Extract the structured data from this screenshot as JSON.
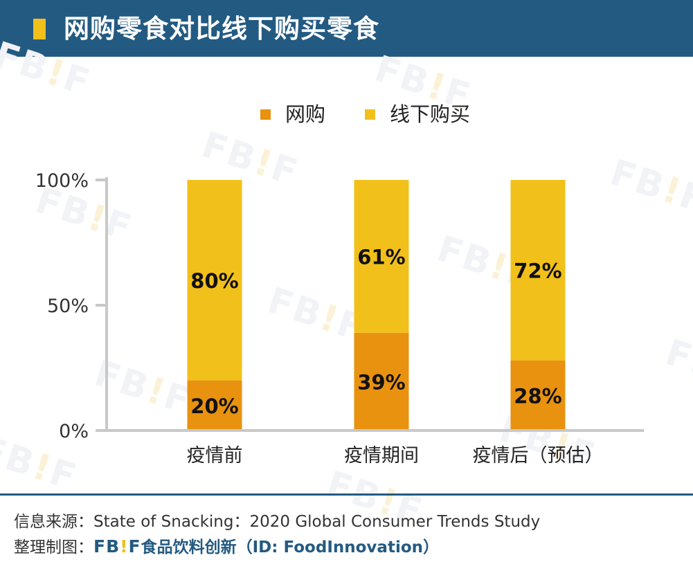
{
  "header": {
    "title": "网购零食对比线下购买零食"
  },
  "legend": {
    "items": [
      {
        "label": "网购",
        "color": "#e8920f"
      },
      {
        "label": "线下购买",
        "color": "#f2c01a"
      }
    ]
  },
  "chart_data": {
    "type": "bar",
    "stacked": true,
    "categories": [
      "疫情前",
      "疫情期间",
      "疫情后（预估）"
    ],
    "series": [
      {
        "name": "网购",
        "values": [
          20,
          39,
          28
        ],
        "color": "#e8920f",
        "labels": [
          "20%",
          "39%",
          "28%"
        ]
      },
      {
        "name": "线下购买",
        "values": [
          80,
          61,
          72
        ],
        "color": "#f2c01a",
        "labels": [
          "80%",
          "61%",
          "72%"
        ]
      }
    ],
    "ylim": [
      0,
      100
    ],
    "yticks": [
      0,
      50,
      100
    ],
    "ytick_labels": [
      "0%",
      "50%",
      "100%"
    ],
    "grid": false,
    "legend_position": "top"
  },
  "footer": {
    "source_label": "信息来源：",
    "source_text": "State of Snacking：2020 Global Consumer Trends Study",
    "credit_label": "整理制图：",
    "logo_left": "FB",
    "logo_bang": "!",
    "logo_right": "F",
    "org_name": "食品饮料创新（ID: FoodInnovation）"
  },
  "watermark": {
    "left": "FB",
    "bang": "!",
    "right": "F"
  }
}
